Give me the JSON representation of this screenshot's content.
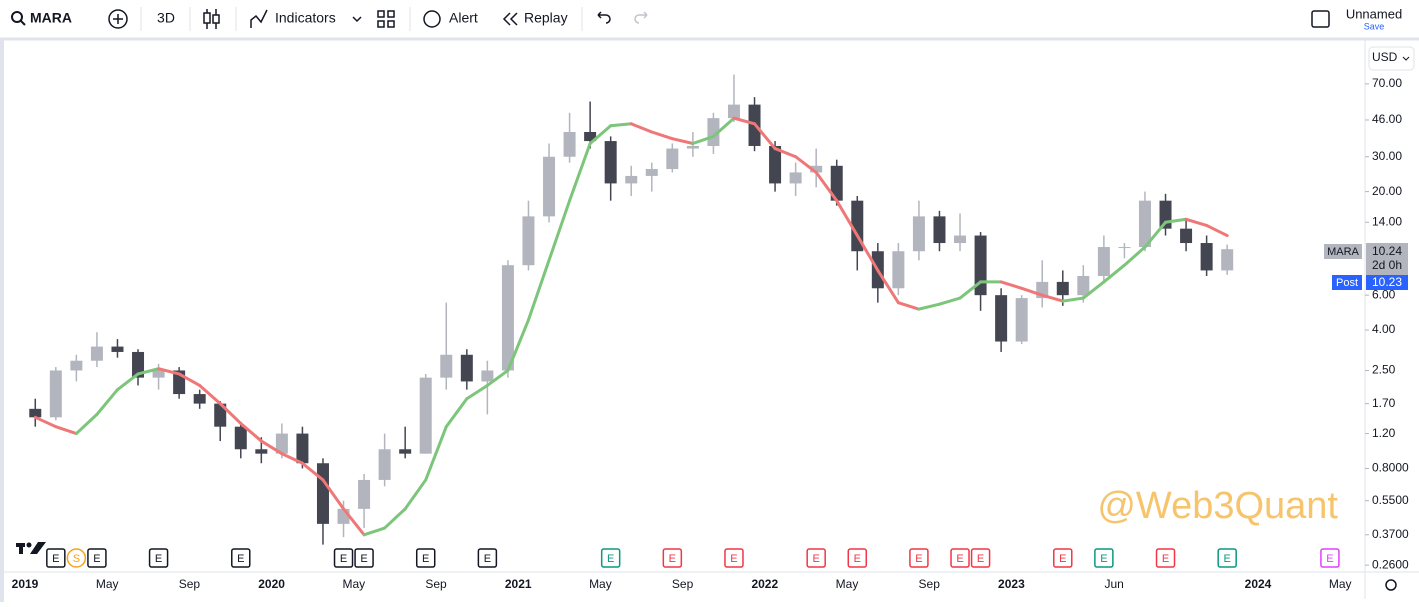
{
  "toolbar": {
    "symbol": "MARA",
    "view": "3D",
    "indicators": "Indicators",
    "alert": "Alert",
    "replay": "Replay",
    "layout_name": "Unnamed",
    "save": "Save"
  },
  "price_panel": {
    "currency": "USD",
    "symbol_tag": "MARA",
    "last_price": 10.24,
    "countdown": "2d 0h",
    "post_tag": "Post",
    "post_price": 10.23
  },
  "watermark": "@Web3Quant",
  "chart_data": {
    "type": "candlestick",
    "log_scale": true,
    "x": [
      "2019-01",
      "2019-02",
      "2019-03",
      "2019-04",
      "2019-05",
      "2019-06",
      "2019-07",
      "2019-08",
      "2019-09",
      "2019-10",
      "2019-11",
      "2019-12",
      "2020-01",
      "2020-02",
      "2020-03",
      "2020-04",
      "2020-05",
      "2020-06",
      "2020-07",
      "2020-08",
      "2020-09",
      "2020-10",
      "2020-11",
      "2020-12",
      "2021-01",
      "2021-02",
      "2021-03",
      "2021-04",
      "2021-05",
      "2021-06",
      "2021-07",
      "2021-08",
      "2021-09",
      "2021-10",
      "2021-11",
      "2021-12",
      "2022-01",
      "2022-02",
      "2022-03",
      "2022-04",
      "2022-05",
      "2022-06",
      "2022-07",
      "2022-08",
      "2022-09",
      "2022-10",
      "2022-11",
      "2022-12",
      "2023-01",
      "2023-02",
      "2023-03",
      "2023-04",
      "2023-05",
      "2023-06",
      "2023-07",
      "2023-08",
      "2023-09",
      "2023-10",
      "2023-11"
    ],
    "ohlc": [
      [
        1.6,
        1.8,
        1.3,
        1.45
      ],
      [
        1.45,
        2.6,
        1.4,
        2.5
      ],
      [
        2.5,
        3.0,
        2.2,
        2.8
      ],
      [
        2.8,
        3.9,
        2.6,
        3.3
      ],
      [
        3.3,
        3.6,
        2.9,
        3.1
      ],
      [
        3.1,
        3.2,
        2.1,
        2.3
      ],
      [
        2.3,
        2.7,
        2.0,
        2.5
      ],
      [
        2.5,
        2.6,
        1.8,
        1.9
      ],
      [
        1.9,
        2.0,
        1.6,
        1.7
      ],
      [
        1.7,
        1.75,
        1.1,
        1.3
      ],
      [
        1.3,
        1.35,
        0.9,
        1.0
      ],
      [
        1.0,
        1.15,
        0.85,
        0.95
      ],
      [
        0.95,
        1.35,
        0.9,
        1.2
      ],
      [
        1.2,
        1.3,
        0.8,
        0.85
      ],
      [
        0.85,
        0.9,
        0.33,
        0.42
      ],
      [
        0.42,
        0.55,
        0.36,
        0.5
      ],
      [
        0.5,
        0.75,
        0.4,
        0.7
      ],
      [
        0.7,
        1.2,
        0.65,
        1.0
      ],
      [
        1.0,
        1.3,
        0.9,
        0.95
      ],
      [
        0.95,
        2.4,
        0.95,
        2.3
      ],
      [
        2.3,
        5.5,
        2.0,
        3.0
      ],
      [
        3.0,
        3.2,
        2.0,
        2.2
      ],
      [
        2.2,
        2.8,
        1.5,
        2.5
      ],
      [
        2.5,
        9.0,
        2.3,
        8.5
      ],
      [
        8.5,
        18,
        8,
        15
      ],
      [
        15,
        35,
        14,
        30
      ],
      [
        30,
        50,
        28,
        40
      ],
      [
        40,
        57,
        33,
        36
      ],
      [
        36,
        38,
        18,
        22
      ],
      [
        22,
        27,
        19,
        24
      ],
      [
        24,
        28,
        20,
        26
      ],
      [
        26,
        35,
        25,
        33
      ],
      [
        33,
        40,
        30,
        34
      ],
      [
        34,
        50,
        31,
        47
      ],
      [
        47,
        78,
        45,
        55
      ],
      [
        55,
        60,
        32,
        34
      ],
      [
        34,
        36,
        20,
        22
      ],
      [
        22,
        28,
        19,
        25
      ],
      [
        25,
        33,
        21,
        27
      ],
      [
        27,
        29,
        17,
        18
      ],
      [
        18,
        19,
        8,
        10
      ],
      [
        10,
        11,
        5.5,
        6.5
      ],
      [
        6.5,
        11,
        6,
        10
      ],
      [
        10,
        18,
        9,
        15
      ],
      [
        15,
        16,
        10,
        11
      ],
      [
        11,
        15.5,
        10,
        12
      ],
      [
        12,
        12.5,
        5,
        6
      ],
      [
        6,
        6.5,
        3.1,
        3.5
      ],
      [
        3.5,
        6,
        3.4,
        5.8
      ],
      [
        5.8,
        9,
        5.2,
        7
      ],
      [
        7,
        8,
        5.3,
        6
      ],
      [
        6,
        8.5,
        5.5,
        7.5
      ],
      [
        7.5,
        12,
        7,
        10.5
      ],
      [
        10.5,
        11,
        9.2,
        10.5
      ],
      [
        10.5,
        20,
        10,
        18
      ],
      [
        18,
        19.5,
        12,
        13
      ],
      [
        13,
        14.5,
        10,
        11
      ],
      [
        11,
        12,
        7.5,
        8
      ],
      [
        8,
        10.8,
        7.6,
        10.24
      ]
    ],
    "up_color": "#b2b5be",
    "down_color": "#434651",
    "ma": {
      "values": [
        1.45,
        1.3,
        1.2,
        1.5,
        2.0,
        2.4,
        2.55,
        2.4,
        2.1,
        1.7,
        1.35,
        1.1,
        0.95,
        0.85,
        0.7,
        0.5,
        0.37,
        0.4,
        0.5,
        0.7,
        1.3,
        1.8,
        2.1,
        2.5,
        4.5,
        9,
        18,
        35,
        43,
        44,
        40,
        37,
        35,
        38,
        47,
        44,
        33,
        30,
        25,
        18,
        12,
        8,
        5.5,
        5.1,
        5.4,
        5.8,
        7,
        7,
        6.5,
        6,
        5.6,
        5.8,
        7,
        8.5,
        10.5,
        14,
        14.5,
        13.5,
        12
      ],
      "up_color": "#7cc57a",
      "down_color": "#f07777"
    },
    "ylim": [
      0.24,
      110
    ],
    "yticks": [
      {
        "value": 70,
        "label": "70.00"
      },
      {
        "value": 46,
        "label": "46.00"
      },
      {
        "value": 30,
        "label": "30.00"
      },
      {
        "value": 20,
        "label": "20.00"
      },
      {
        "value": 14,
        "label": "14.00"
      },
      {
        "value": 6,
        "label": "6.00"
      },
      {
        "value": 4,
        "label": "4.00"
      },
      {
        "value": 2.5,
        "label": "2.50"
      },
      {
        "value": 1.7,
        "label": "1.70"
      },
      {
        "value": 1.2,
        "label": "1.20"
      },
      {
        "value": 0.8,
        "label": "0.8000"
      },
      {
        "value": 0.55,
        "label": "0.5500"
      },
      {
        "value": 0.37,
        "label": "0.3700"
      },
      {
        "value": 0.26,
        "label": "0.2600"
      }
    ],
    "xticks": [
      {
        "value": "2019-01",
        "label": "2019"
      },
      {
        "value": "2019-05",
        "label": "May"
      },
      {
        "value": "2019-09",
        "label": "Sep"
      },
      {
        "value": "2020-01",
        "label": "2020"
      },
      {
        "value": "2020-05",
        "label": "May"
      },
      {
        "value": "2020-09",
        "label": "Sep"
      },
      {
        "value": "2021-01",
        "label": "2021"
      },
      {
        "value": "2021-05",
        "label": "May"
      },
      {
        "value": "2021-09",
        "label": "Sep"
      },
      {
        "value": "2022-01",
        "label": "2022"
      },
      {
        "value": "2022-05",
        "label": "May"
      },
      {
        "value": "2022-09",
        "label": "Sep"
      },
      {
        "value": "2023-01",
        "label": "2023"
      },
      {
        "value": "2023-06",
        "label": "Jun"
      },
      {
        "value": "2024-01",
        "label": "2024"
      },
      {
        "value": "2024-05",
        "label": "May"
      }
    ],
    "events": [
      {
        "x": "2019-02",
        "label": "E",
        "color": "#131722"
      },
      {
        "x": "2019-03",
        "label": "S",
        "color": "#f7a21b"
      },
      {
        "x": "2019-04",
        "label": "E",
        "color": "#131722"
      },
      {
        "x": "2019-07",
        "label": "E",
        "color": "#131722"
      },
      {
        "x": "2019-11",
        "label": "E",
        "color": "#131722"
      },
      {
        "x": "2020-04",
        "label": "E",
        "color": "#131722"
      },
      {
        "x": "2020-05",
        "label": "E",
        "color": "#131722"
      },
      {
        "x": "2020-08",
        "label": "E",
        "color": "#131722"
      },
      {
        "x": "2020-11",
        "label": "E",
        "color": "#131722"
      },
      {
        "x": "2021-05",
        "label": "E",
        "color": "#089981"
      },
      {
        "x": "2021-08",
        "label": "E",
        "color": "#f23645"
      },
      {
        "x": "2021-11",
        "label": "E",
        "color": "#f23645"
      },
      {
        "x": "2022-03",
        "label": "E",
        "color": "#f23645"
      },
      {
        "x": "2022-05",
        "label": "E",
        "color": "#f23645"
      },
      {
        "x": "2022-08",
        "label": "E",
        "color": "#f23645"
      },
      {
        "x": "2022-10",
        "label": "E",
        "color": "#f23645"
      },
      {
        "x": "2022-11",
        "label": "E",
        "color": "#f23645"
      },
      {
        "x": "2023-03",
        "label": "E",
        "color": "#f23645"
      },
      {
        "x": "2023-05",
        "label": "E",
        "color": "#089981"
      },
      {
        "x": "2023-08",
        "label": "E",
        "color": "#f23645"
      },
      {
        "x": "2023-11",
        "label": "E",
        "color": "#089981"
      },
      {
        "x": "2024-04",
        "label": "E",
        "color": "#e040fb"
      }
    ]
  }
}
